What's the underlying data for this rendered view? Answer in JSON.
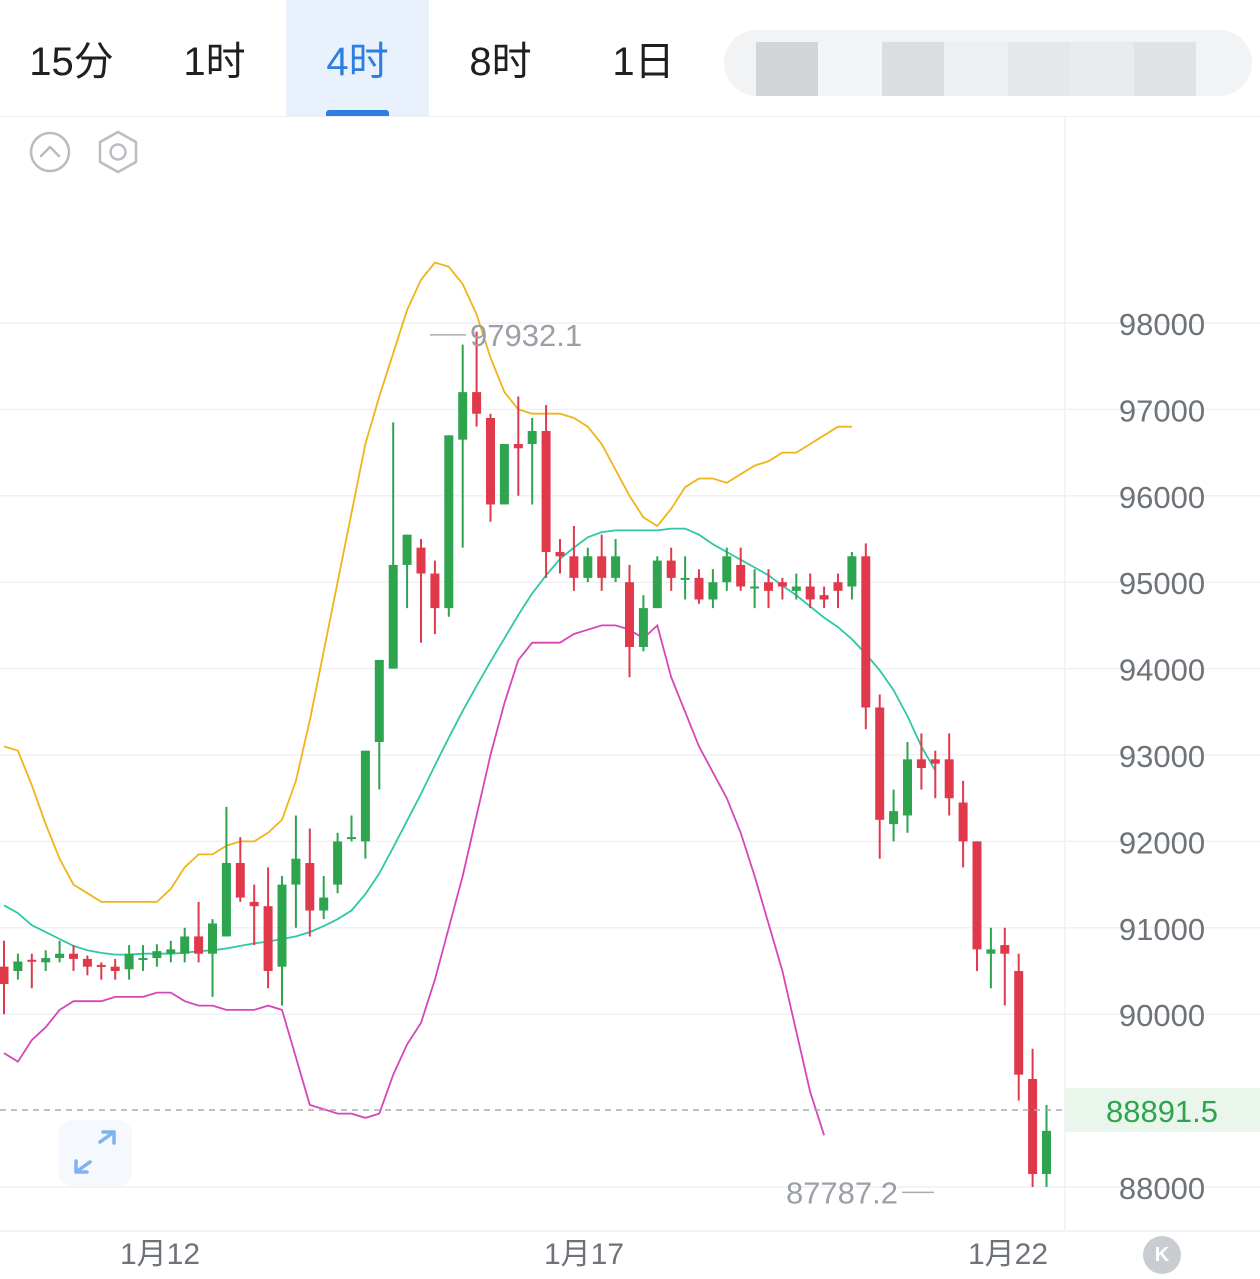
{
  "tabs": [
    {
      "label": "15分",
      "active": false
    },
    {
      "label": "1时",
      "active": false
    },
    {
      "label": "4时",
      "active": true
    },
    {
      "label": "8时",
      "active": false
    },
    {
      "label": "1日",
      "active": false
    }
  ],
  "toolbar": {
    "collapse_icon": "chevron-up-circle-icon",
    "settings_icon": "hexagon-settings-icon",
    "expand_icon": "expand-arrows-icon"
  },
  "colors": {
    "up": "#2ea44f",
    "down": "#e0394b",
    "ma": "#2fc7a6",
    "upper": "#f0b419",
    "lower": "#d646b8",
    "accent": "#2d7ee0"
  },
  "k_badge": "K",
  "chart_data": {
    "type": "candlestick",
    "ylim": [
      87500,
      99800
    ],
    "y_ticks": [
      98000,
      97000,
      96000,
      95000,
      94000,
      93000,
      92000,
      91000,
      90000,
      88000
    ],
    "x_ticks": [
      "1月12",
      "1月17",
      "1月22"
    ],
    "current_price": {
      "value": 88891.5,
      "label": "88891.5"
    },
    "annotations": [
      {
        "label": "97932.1",
        "value": 97932.1
      },
      {
        "label": "87787.2",
        "value": 87787.2
      }
    ],
    "candles": [
      [
        90550,
        90350,
        90850,
        90000
      ],
      [
        90500,
        90610,
        90700,
        90400
      ],
      [
        90630,
        90610,
        90700,
        90300
      ],
      [
        90600,
        90650,
        90740,
        90500
      ],
      [
        90650,
        90700,
        90850,
        90600
      ],
      [
        90700,
        90640,
        90800,
        90500
      ],
      [
        90640,
        90550,
        90680,
        90450
      ],
      [
        90570,
        90550,
        90600,
        90400
      ],
      [
        90550,
        90500,
        90640,
        90400
      ],
      [
        90520,
        90700,
        90800,
        90400
      ],
      [
        90650,
        90650,
        90800,
        90500
      ],
      [
        90650,
        90730,
        90810,
        90550
      ],
      [
        90700,
        90750,
        90850,
        90600
      ],
      [
        90700,
        90900,
        91000,
        90600
      ],
      [
        90900,
        90700,
        91300,
        90600
      ],
      [
        90700,
        91050,
        91100,
        90200
      ],
      [
        90900,
        91750,
        92400,
        90900
      ],
      [
        91750,
        91350,
        92050,
        91300
      ],
      [
        91300,
        91250,
        91500,
        90800
      ],
      [
        91250,
        90500,
        91700,
        90300
      ],
      [
        90550,
        91500,
        91600,
        90100
      ],
      [
        91500,
        91800,
        92300,
        91000
      ],
      [
        91750,
        91200,
        92150,
        90900
      ],
      [
        91200,
        91350,
        91600,
        91100
      ],
      [
        91500,
        92000,
        92100,
        91400
      ],
      [
        92050,
        92050,
        92300,
        92000
      ],
      [
        92000,
        93050,
        93050,
        91800
      ],
      [
        93150,
        94100,
        94100,
        92600
      ],
      [
        94000,
        95200,
        96850,
        94000
      ],
      [
        95200,
        95550,
        95550,
        94700
      ],
      [
        95400,
        95100,
        95500,
        94300
      ],
      [
        95100,
        94700,
        95250,
        94400
      ],
      [
        94700,
        96700,
        96700,
        94600
      ],
      [
        96650,
        97200,
        97750,
        95400
      ],
      [
        97200,
        96950,
        97900,
        96800
      ],
      [
        96900,
        95900,
        96950,
        95700
      ],
      [
        95900,
        96600,
        96600,
        95900
      ],
      [
        96600,
        96550,
        97150,
        96000
      ],
      [
        96600,
        96750,
        96900,
        95900
      ],
      [
        96750,
        95350,
        97050,
        95050
      ],
      [
        95350,
        95300,
        95500,
        95100
      ],
      [
        95300,
        95050,
        95650,
        94900
      ],
      [
        95050,
        95300,
        95400,
        95000
      ],
      [
        95300,
        95050,
        95550,
        94900
      ],
      [
        95050,
        95300,
        95500,
        95000
      ],
      [
        95000,
        94250,
        95200,
        93900
      ],
      [
        94250,
        94700,
        94850,
        94200
      ],
      [
        94700,
        95250,
        95300,
        94700
      ],
      [
        95250,
        95050,
        95400,
        94900
      ],
      [
        95050,
        95050,
        95300,
        94800
      ],
      [
        95050,
        94800,
        95150,
        94750
      ],
      [
        94800,
        95000,
        95150,
        94700
      ],
      [
        95000,
        95300,
        95400,
        94900
      ],
      [
        95200,
        94950,
        95400,
        94900
      ],
      [
        94950,
        94950,
        95150,
        94700
      ],
      [
        95000,
        94900,
        95150,
        94700
      ],
      [
        95000,
        94950,
        95050,
        94800
      ],
      [
        94900,
        94950,
        95100,
        94800
      ],
      [
        94950,
        94800,
        95100,
        94700
      ],
      [
        94850,
        94800,
        94950,
        94700
      ],
      [
        95000,
        94900,
        95100,
        94700
      ],
      [
        94950,
        95300,
        95350,
        94800
      ],
      [
        95300,
        93550,
        95450,
        93300
      ],
      [
        93550,
        92250,
        93700,
        91800
      ],
      [
        92200,
        92350,
        92600,
        92000
      ],
      [
        92300,
        92950,
        93150,
        92100
      ],
      [
        92950,
        92850,
        93250,
        92600
      ],
      [
        92950,
        92900,
        93050,
        92500
      ],
      [
        92950,
        92500,
        93250,
        92300
      ],
      [
        92450,
        92000,
        92700,
        91700
      ],
      [
        92000,
        90750,
        92000,
        90500
      ],
      [
        90700,
        90750,
        91000,
        90300
      ],
      [
        90800,
        90700,
        91000,
        90100
      ],
      [
        90500,
        89300,
        90700,
        89000
      ],
      [
        89250,
        88150,
        89600,
        88000
      ],
      [
        88150,
        88650,
        88950,
        88000
      ]
    ],
    "bands": {
      "ma": [
        [
          0,
          91260
        ],
        [
          1,
          91170
        ],
        [
          2,
          91030
        ],
        [
          3,
          90950
        ],
        [
          4,
          90870
        ],
        [
          5,
          90790
        ],
        [
          6,
          90740
        ],
        [
          7,
          90710
        ],
        [
          8,
          90690
        ],
        [
          9,
          90690
        ],
        [
          10,
          90700
        ],
        [
          11,
          90700
        ],
        [
          12,
          90700
        ],
        [
          13,
          90710
        ],
        [
          14,
          90730
        ],
        [
          15,
          90740
        ],
        [
          16,
          90760
        ],
        [
          17,
          90790
        ],
        [
          18,
          90820
        ],
        [
          19,
          90840
        ],
        [
          20,
          90870
        ],
        [
          21,
          90900
        ],
        [
          22,
          90950
        ],
        [
          23,
          91020
        ],
        [
          24,
          91100
        ],
        [
          25,
          91200
        ],
        [
          26,
          91390
        ],
        [
          27,
          91630
        ],
        [
          28,
          91930
        ],
        [
          29,
          92240
        ],
        [
          30,
          92550
        ],
        [
          31,
          92880
        ],
        [
          32,
          93200
        ],
        [
          33,
          93510
        ],
        [
          34,
          93800
        ],
        [
          35,
          94080
        ],
        [
          36,
          94350
        ],
        [
          37,
          94620
        ],
        [
          38,
          94870
        ],
        [
          39,
          95080
        ],
        [
          40,
          95270
        ],
        [
          41,
          95400
        ],
        [
          42,
          95520
        ],
        [
          43,
          95580
        ],
        [
          44,
          95600
        ],
        [
          45,
          95600
        ],
        [
          46,
          95600
        ],
        [
          47,
          95600
        ],
        [
          48,
          95620
        ],
        [
          49,
          95620
        ],
        [
          50,
          95550
        ],
        [
          51,
          95440
        ],
        [
          52,
          95350
        ],
        [
          53,
          95260
        ],
        [
          54,
          95170
        ],
        [
          55,
          95080
        ],
        [
          56,
          94960
        ],
        [
          57,
          94850
        ],
        [
          58,
          94720
        ],
        [
          59,
          94590
        ],
        [
          60,
          94480
        ],
        [
          61,
          94340
        ],
        [
          62,
          94170
        ],
        [
          63,
          93980
        ],
        [
          64,
          93750
        ],
        [
          65,
          93450
        ],
        [
          66,
          93100
        ],
        [
          67,
          92820
        ]
      ],
      "upper": [
        [
          0,
          93100
        ],
        [
          1,
          93050
        ],
        [
          2,
          92650
        ],
        [
          3,
          92200
        ],
        [
          4,
          91800
        ],
        [
          5,
          91500
        ],
        [
          6,
          91400
        ],
        [
          7,
          91300
        ],
        [
          8,
          91300
        ],
        [
          9,
          91300
        ],
        [
          10,
          91300
        ],
        [
          11,
          91300
        ],
        [
          12,
          91450
        ],
        [
          13,
          91700
        ],
        [
          14,
          91850
        ],
        [
          15,
          91850
        ],
        [
          16,
          91950
        ],
        [
          17,
          92000
        ],
        [
          18,
          92000
        ],
        [
          19,
          92100
        ],
        [
          20,
          92250
        ],
        [
          21,
          92700
        ],
        [
          22,
          93400
        ],
        [
          23,
          94200
        ],
        [
          24,
          95000
        ],
        [
          25,
          95800
        ],
        [
          26,
          96600
        ],
        [
          27,
          97150
        ],
        [
          28,
          97650
        ],
        [
          29,
          98150
        ],
        [
          30,
          98500
        ],
        [
          31,
          98700
        ],
        [
          32,
          98650
        ],
        [
          33,
          98450
        ],
        [
          34,
          98100
        ],
        [
          35,
          97600
        ],
        [
          36,
          97200
        ],
        [
          37,
          97000
        ],
        [
          38,
          96950
        ],
        [
          39,
          96950
        ],
        [
          40,
          96950
        ],
        [
          41,
          96900
        ],
        [
          42,
          96800
        ],
        [
          43,
          96600
        ],
        [
          44,
          96300
        ],
        [
          45,
          96000
        ],
        [
          46,
          95750
        ],
        [
          47,
          95650
        ],
        [
          48,
          95850
        ],
        [
          49,
          96100
        ],
        [
          50,
          96200
        ],
        [
          51,
          96200
        ],
        [
          52,
          96150
        ],
        [
          53,
          96250
        ],
        [
          54,
          96350
        ],
        [
          55,
          96400
        ],
        [
          56,
          96500
        ],
        [
          57,
          96500
        ],
        [
          58,
          96600
        ],
        [
          59,
          96700
        ],
        [
          60,
          96800
        ],
        [
          61,
          96800
        ]
      ],
      "lower": [
        [
          0,
          89550
        ],
        [
          1,
          89450
        ],
        [
          2,
          89700
        ],
        [
          3,
          89850
        ],
        [
          4,
          90050
        ],
        [
          5,
          90150
        ],
        [
          6,
          90150
        ],
        [
          7,
          90150
        ],
        [
          8,
          90200
        ],
        [
          9,
          90200
        ],
        [
          10,
          90200
        ],
        [
          11,
          90250
        ],
        [
          12,
          90250
        ],
        [
          13,
          90150
        ],
        [
          14,
          90100
        ],
        [
          15,
          90100
        ],
        [
          16,
          90050
        ],
        [
          17,
          90050
        ],
        [
          18,
          90050
        ],
        [
          19,
          90100
        ],
        [
          20,
          90050
        ],
        [
          21,
          89500
        ],
        [
          22,
          88950
        ],
        [
          23,
          88900
        ],
        [
          24,
          88850
        ],
        [
          25,
          88850
        ],
        [
          26,
          88800
        ],
        [
          27,
          88850
        ],
        [
          28,
          89300
        ],
        [
          29,
          89650
        ],
        [
          30,
          89900
        ],
        [
          31,
          90400
        ],
        [
          32,
          91000
        ],
        [
          33,
          91600
        ],
        [
          34,
          92300
        ],
        [
          35,
          93000
        ],
        [
          36,
          93600
        ],
        [
          37,
          94100
        ],
        [
          38,
          94300
        ],
        [
          39,
          94300
        ],
        [
          40,
          94300
        ],
        [
          41,
          94400
        ],
        [
          42,
          94450
        ],
        [
          43,
          94500
        ],
        [
          44,
          94500
        ],
        [
          45,
          94450
        ],
        [
          46,
          94350
        ],
        [
          47,
          94500
        ],
        [
          48,
          93900
        ],
        [
          49,
          93500
        ],
        [
          50,
          93100
        ],
        [
          51,
          92800
        ],
        [
          52,
          92500
        ],
        [
          53,
          92100
        ],
        [
          54,
          91600
        ],
        [
          55,
          91050
        ],
        [
          56,
          90500
        ],
        [
          57,
          89800
        ],
        [
          58,
          89100
        ],
        [
          59,
          88600
        ]
      ]
    }
  }
}
